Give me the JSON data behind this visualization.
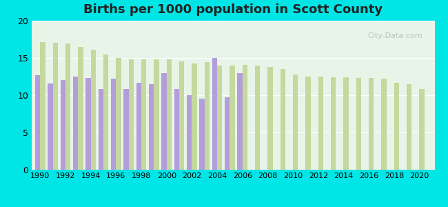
{
  "title": "Births per 1000 population in Scott County",
  "background_color": "#00e5e5",
  "plot_bg_top": "#e8f4e8",
  "plot_bg_bottom": "#f0f8f0",
  "years": [
    1990,
    1991,
    1992,
    1993,
    1994,
    1995,
    1996,
    1997,
    1998,
    1999,
    2000,
    2001,
    2002,
    2003,
    2004,
    2005,
    2006,
    2007,
    2008,
    2009,
    2010,
    2011,
    2012,
    2013,
    2014,
    2015,
    2016,
    2017,
    2018,
    2019,
    2020
  ],
  "scott_county": [
    12.7,
    11.6,
    12.0,
    12.5,
    12.3,
    10.8,
    12.2,
    10.8,
    11.7,
    11.5,
    13.0,
    10.8,
    10.0,
    9.5,
    15.0,
    9.7,
    13.0,
    null,
    null,
    null,
    null,
    null,
    null,
    null,
    null,
    null,
    null,
    null,
    null,
    null,
    null
  ],
  "illinois": [
    17.1,
    17.0,
    16.9,
    16.5,
    16.1,
    15.5,
    15.0,
    14.8,
    14.8,
    14.8,
    14.8,
    14.5,
    14.3,
    14.4,
    14.0,
    14.0,
    14.1,
    14.0,
    13.8,
    13.5,
    12.8,
    12.5,
    12.5,
    12.4,
    12.4,
    12.3,
    12.3,
    12.2,
    11.7,
    11.5,
    10.8
  ],
  "scott_color": "#b39ddb",
  "illinois_color": "#c5d89d",
  "ylim": [
    0,
    20
  ],
  "yticks": [
    0,
    5,
    10,
    15,
    20
  ],
  "bar_width": 0.4,
  "xlabel": "",
  "ylabel": ""
}
